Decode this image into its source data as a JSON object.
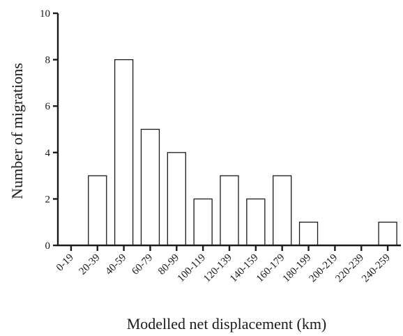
{
  "chart_data": {
    "type": "bar",
    "xlabel": "Modelled net displacement (km)",
    "ylabel": "Number of migrations",
    "ylim": [
      0,
      10
    ],
    "yticks": [
      0,
      2,
      4,
      6,
      8,
      10
    ],
    "categories": [
      "0-19",
      "20-39",
      "40-59",
      "60-79",
      "80-99",
      "100-119",
      "120-139",
      "140-159",
      "160-179",
      "180-199",
      "200-219",
      "220-239",
      "240-259"
    ],
    "values": [
      0,
      3,
      8,
      5,
      4,
      2,
      3,
      2,
      3,
      1,
      0,
      0,
      1
    ],
    "grid": false,
    "legend": "none"
  }
}
